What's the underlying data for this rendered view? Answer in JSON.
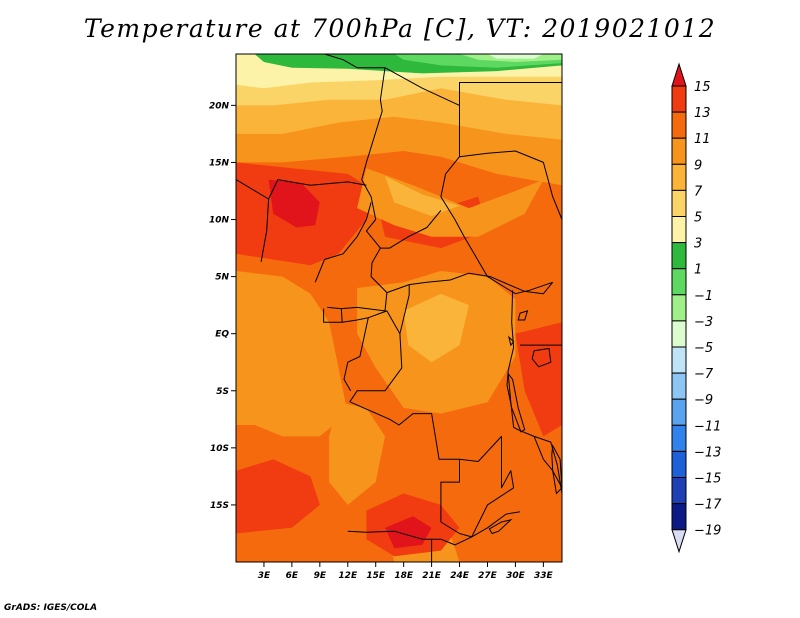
{
  "title": "Temperature at 700hPa [C], VT: 2019021012",
  "credit": "GrADS: IGES/COLA",
  "chart_data": {
    "type": "heatmap",
    "title": "Temperature at 700hPa [C], VT: 2019021012",
    "units": "C",
    "valid_time": "2019021012",
    "xlim": [
      0,
      35
    ],
    "ylim": [
      -20,
      24.5
    ],
    "x_ticks": [
      {
        "value": 3,
        "label": "3E"
      },
      {
        "value": 6,
        "label": "6E"
      },
      {
        "value": 9,
        "label": "9E"
      },
      {
        "value": 12,
        "label": "12E"
      },
      {
        "value": 15,
        "label": "15E"
      },
      {
        "value": 18,
        "label": "18E"
      },
      {
        "value": 21,
        "label": "21E"
      },
      {
        "value": 24,
        "label": "24E"
      },
      {
        "value": 27,
        "label": "27E"
      },
      {
        "value": 30,
        "label": "30E"
      },
      {
        "value": 33,
        "label": "33E"
      }
    ],
    "y_ticks": [
      {
        "value": 20,
        "label": "20N"
      },
      {
        "value": 15,
        "label": "15N"
      },
      {
        "value": 10,
        "label": "10N"
      },
      {
        "value": 5,
        "label": "5N"
      },
      {
        "value": 0,
        "label": "EQ"
      },
      {
        "value": -5,
        "label": "5S"
      },
      {
        "value": -10,
        "label": "10S"
      },
      {
        "value": -15,
        "label": "15S"
      }
    ],
    "colorbar": {
      "levels": [
        "15",
        "13",
        "11",
        "9",
        "7",
        "5",
        "3",
        "1",
        "−1",
        "−3",
        "−5",
        "−7",
        "−9",
        "−11",
        "−13",
        "−15",
        "−17",
        "−19"
      ],
      "colors": [
        "#e0141a",
        "#f03c10",
        "#f56a0c",
        "#f7941c",
        "#fbb43a",
        "#fbd468",
        "#fdf3a8",
        "#2eb83c",
        "#5dd860",
        "#a0f08a",
        "#dcfcd0",
        "#bfe3f7",
        "#8ec6f3",
        "#5aa3ef",
        "#3282eb",
        "#1e60d8",
        "#1f40b4",
        "#0c1a86",
        "#dadcf4"
      ]
    },
    "temperature_regions": [
      {
        "band": "3 to 5",
        "region": "northern strip near 20N–24N",
        "color": "#fdf3a8"
      },
      {
        "band": "-1 to 3",
        "region": "northern edge, 10E–34E at 23N–24.5N",
        "color": "#5dd860"
      },
      {
        "band": "13 to 15",
        "region": "Nigeria / Cameroon highland area near 8N–13N",
        "color": "#f03c10"
      },
      {
        "band": "13 to 15",
        "region": "southern Africa near 13S–18S, 15E–24E",
        "color": "#f03c10"
      },
      {
        "band": "11 to 13",
        "region": "most of interior between 10N and 20S",
        "color": "#f56a0c"
      },
      {
        "band": "9 to 11",
        "region": "Congo basin and southwest coast",
        "color": "#f7941c"
      }
    ]
  }
}
